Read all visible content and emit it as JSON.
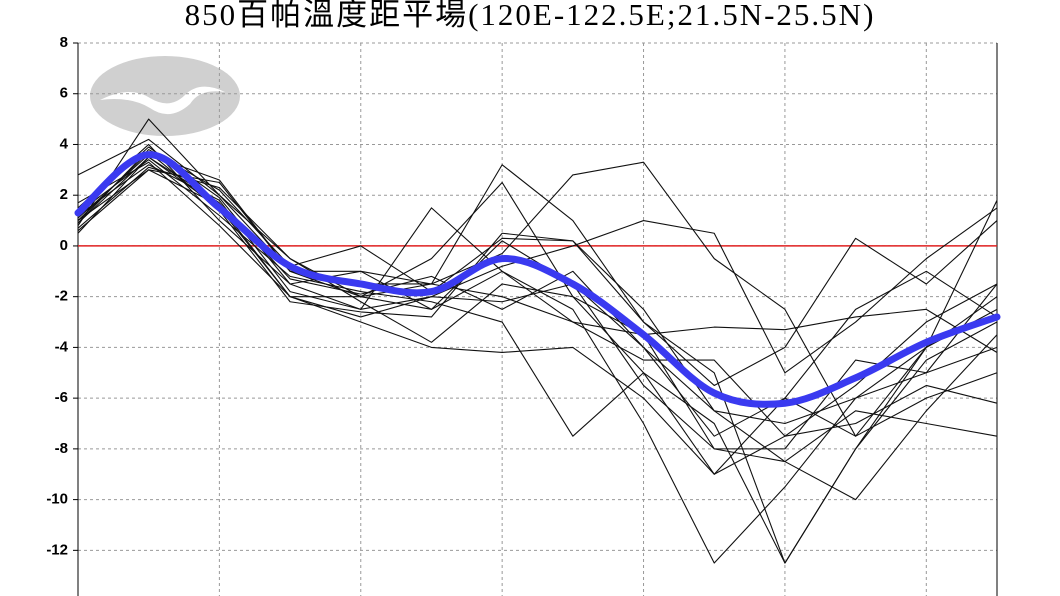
{
  "chart_data": {
    "type": "line",
    "title": "850百帕溫度距平場(120E-122.5E;21.5N-25.5N)",
    "categories": [
      null,
      null,
      null,
      null,
      null,
      null,
      null,
      null,
      null,
      null,
      null,
      null,
      null,
      null
    ],
    "ylim": [
      -13.8,
      8
    ],
    "yticks": [
      8,
      6,
      4,
      2,
      0,
      -2,
      -4,
      -6,
      -8,
      -10,
      -12
    ],
    "grid": true,
    "reference_line": {
      "value": 0,
      "color": "#e02020"
    },
    "series": [
      {
        "color": "#111111",
        "values": [
          0.8,
          5.0,
          2.0,
          -0.5,
          -2.0,
          -2.5,
          0.2,
          -1.5,
          -4.0,
          -6.5,
          -7.0,
          -6.0,
          -5.0,
          -4.0
        ]
      },
      {
        "color": "#111111",
        "values": [
          1.0,
          3.0,
          2.5,
          -1.0,
          -1.0,
          -1.5,
          3.2,
          1.0,
          -3.0,
          -5.0,
          -12.5,
          -8.0,
          -4.5,
          -3.0
        ]
      },
      {
        "color": "#111111",
        "values": [
          0.5,
          3.5,
          1.5,
          -2.0,
          -2.0,
          -0.5,
          2.5,
          -2.0,
          -5.0,
          -9.0,
          -6.0,
          -7.5,
          -6.0,
          -5.0
        ]
      },
      {
        "color": "#111111",
        "values": [
          1.5,
          4.0,
          1.0,
          -1.5,
          -2.5,
          1.5,
          -1.0,
          -2.5,
          -7.0,
          -12.5,
          -9.5,
          -6.0,
          -4.0,
          -2.0
        ]
      },
      {
        "color": "#111111",
        "values": [
          2.8,
          4.2,
          2.0,
          -1.0,
          -1.5,
          -1.5,
          -0.3,
          2.8,
          3.3,
          -0.5,
          -2.5,
          -7.5,
          -4.0,
          1.8
        ]
      },
      {
        "color": "#111111",
        "values": [
          1.2,
          3.2,
          1.8,
          -1.8,
          -2.5,
          -2.0,
          -2.2,
          -1.5,
          -5.5,
          -8.0,
          -8.5,
          -6.5,
          -7.0,
          -7.5
        ]
      },
      {
        "color": "#111111",
        "values": [
          0.9,
          3.8,
          2.2,
          -0.8,
          0.0,
          -1.8,
          0.3,
          0.2,
          -3.0,
          -5.5,
          -4.0,
          0.3,
          -1.5,
          1.0
        ]
      },
      {
        "color": "#111111",
        "values": [
          1.3,
          3.4,
          1.2,
          -1.2,
          -1.8,
          -2.2,
          -3.0,
          -7.5,
          -5.0,
          -7.0,
          -12.5,
          -8.0,
          -4.0,
          -2.5
        ]
      },
      {
        "color": "#111111",
        "values": [
          0.6,
          3.0,
          1.6,
          -2.0,
          -3.0,
          -4.0,
          -4.2,
          -4.0,
          -6.0,
          -9.0,
          -7.5,
          -5.5,
          -3.0,
          -1.5
        ]
      },
      {
        "color": "#111111",
        "values": [
          1.1,
          3.6,
          2.6,
          -1.0,
          -2.0,
          -1.5,
          -2.0,
          -3.0,
          -4.5,
          -4.5,
          -7.5,
          -7.0,
          -5.5,
          -6.2
        ]
      },
      {
        "color": "#111111",
        "values": [
          1.7,
          3.3,
          0.8,
          -2.0,
          -2.8,
          -2.0,
          -0.8,
          0.0,
          1.0,
          0.5,
          -5.0,
          -3.0,
          -0.5,
          1.5
        ]
      },
      {
        "color": "#111111",
        "values": [
          1.4,
          3.9,
          1.9,
          -1.5,
          -1.0,
          -2.5,
          -1.0,
          -3.0,
          -3.5,
          -3.2,
          -3.3,
          -2.8,
          -2.5,
          -4.2
        ]
      },
      {
        "color": "#111111",
        "values": [
          0.7,
          3.1,
          2.3,
          -0.5,
          -2.2,
          -3.8,
          -1.5,
          -2.0,
          -3.5,
          -8.0,
          -8.0,
          -4.5,
          -5.0,
          -1.5
        ]
      },
      {
        "color": "#111111",
        "values": [
          1.0,
          3.7,
          1.4,
          -2.2,
          -2.6,
          -2.8,
          0.5,
          0.2,
          -2.5,
          -6.5,
          -8.5,
          -10.0,
          -6.5,
          -3.5
        ]
      },
      {
        "color": "#111111",
        "values": [
          0.9,
          3.5,
          1.7,
          -1.3,
          -1.9,
          -1.2,
          -2.5,
          -1.0,
          -4.0,
          -7.5,
          -6.0,
          -2.5,
          -1.0,
          -2.8
        ]
      },
      {
        "color": "#3a3af0",
        "highlight": true,
        "values": [
          1.3,
          3.6,
          1.5,
          -0.8,
          -1.5,
          -1.8,
          -0.5,
          -1.5,
          -3.5,
          -5.8,
          -6.2,
          -5.2,
          -3.8,
          -2.8
        ]
      }
    ]
  }
}
